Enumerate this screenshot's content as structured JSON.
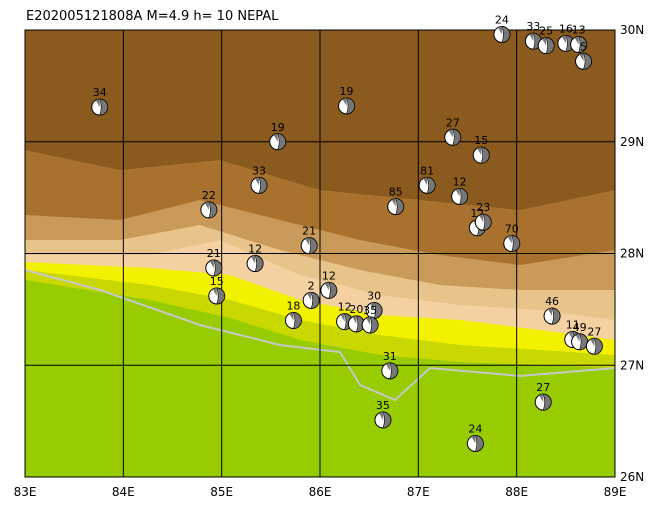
{
  "title": "E202005121808A M=4.9 h= 10 NEPAL",
  "xlim": [
    83,
    89
  ],
  "ylim": [
    26,
    30
  ],
  "lon_ticks": [
    {
      "value": 83,
      "label": "83E"
    },
    {
      "value": 84,
      "label": "84E"
    },
    {
      "value": 85,
      "label": "85E"
    },
    {
      "value": 86,
      "label": "86E"
    },
    {
      "value": 87,
      "label": "87E"
    },
    {
      "value": 88,
      "label": "88E"
    },
    {
      "value": 89,
      "label": "89E"
    }
  ],
  "lat_ticks": [
    {
      "value": 26,
      "label": "26N"
    },
    {
      "value": 27,
      "label": "27N"
    },
    {
      "value": 28,
      "label": "28N"
    },
    {
      "value": 29,
      "label": "29N"
    },
    {
      "value": 30,
      "label": "30N"
    }
  ],
  "events": [
    {
      "label": "34",
      "lon": 83.76,
      "lat": 29.31
    },
    {
      "label": "19",
      "lon": 86.27,
      "lat": 29.32
    },
    {
      "label": "19",
      "lon": 85.57,
      "lat": 29.0
    },
    {
      "label": "27",
      "lon": 87.35,
      "lat": 29.04
    },
    {
      "label": "15",
      "lon": 87.64,
      "lat": 28.88
    },
    {
      "label": "33",
      "lon": 85.38,
      "lat": 28.61
    },
    {
      "label": "81",
      "lon": 87.09,
      "lat": 28.61
    },
    {
      "label": "12",
      "lon": 87.42,
      "lat": 28.51
    },
    {
      "label": "85",
      "lon": 86.77,
      "lat": 28.42
    },
    {
      "label": "22",
      "lon": 84.87,
      "lat": 28.39
    },
    {
      "label": "12",
      "lon": 87.6,
      "lat": 28.23
    },
    {
      "label": "23",
      "lon": 87.66,
      "lat": 28.28
    },
    {
      "label": "70",
      "lon": 87.95,
      "lat": 28.09
    },
    {
      "label": "21",
      "lon": 85.89,
      "lat": 28.07
    },
    {
      "label": "12",
      "lon": 85.34,
      "lat": 27.91
    },
    {
      "label": "21",
      "lon": 84.92,
      "lat": 27.87
    },
    {
      "label": "15",
      "lon": 84.95,
      "lat": 27.62
    },
    {
      "label": "12",
      "lon": 86.09,
      "lat": 27.67
    },
    {
      "label": "2",
      "lon": 85.91,
      "lat": 27.58
    },
    {
      "label": "18",
      "lon": 85.73,
      "lat": 27.4
    },
    {
      "label": "12",
      "lon": 86.25,
      "lat": 27.39
    },
    {
      "label": "20",
      "lon": 86.37,
      "lat": 27.37
    },
    {
      "label": "30",
      "lon": 86.55,
      "lat": 27.49
    },
    {
      "label": "35",
      "lon": 86.51,
      "lat": 27.36
    },
    {
      "label": "46",
      "lon": 88.36,
      "lat": 27.44
    },
    {
      "label": "11",
      "lon": 88.57,
      "lat": 27.23
    },
    {
      "label": "49",
      "lon": 88.64,
      "lat": 27.21
    },
    {
      "label": "27",
      "lon": 88.79,
      "lat": 27.17
    },
    {
      "label": "31",
      "lon": 86.71,
      "lat": 26.95
    },
    {
      "label": "35",
      "lon": 86.64,
      "lat": 26.51
    },
    {
      "label": "27",
      "lon": 88.27,
      "lat": 26.67
    },
    {
      "label": "24",
      "lon": 87.58,
      "lat": 26.3
    },
    {
      "label": "24",
      "lon": 87.85,
      "lat": 29.96
    },
    {
      "label": "33",
      "lon": 88.17,
      "lat": 29.9
    },
    {
      "label": "25",
      "lon": 88.3,
      "lat": 29.86
    },
    {
      "label": "16",
      "lon": 88.5,
      "lat": 29.88
    },
    {
      "label": "13",
      "lon": 88.63,
      "lat": 29.87
    },
    {
      "label": "5",
      "lon": 88.68,
      "lat": 29.72
    }
  ]
}
